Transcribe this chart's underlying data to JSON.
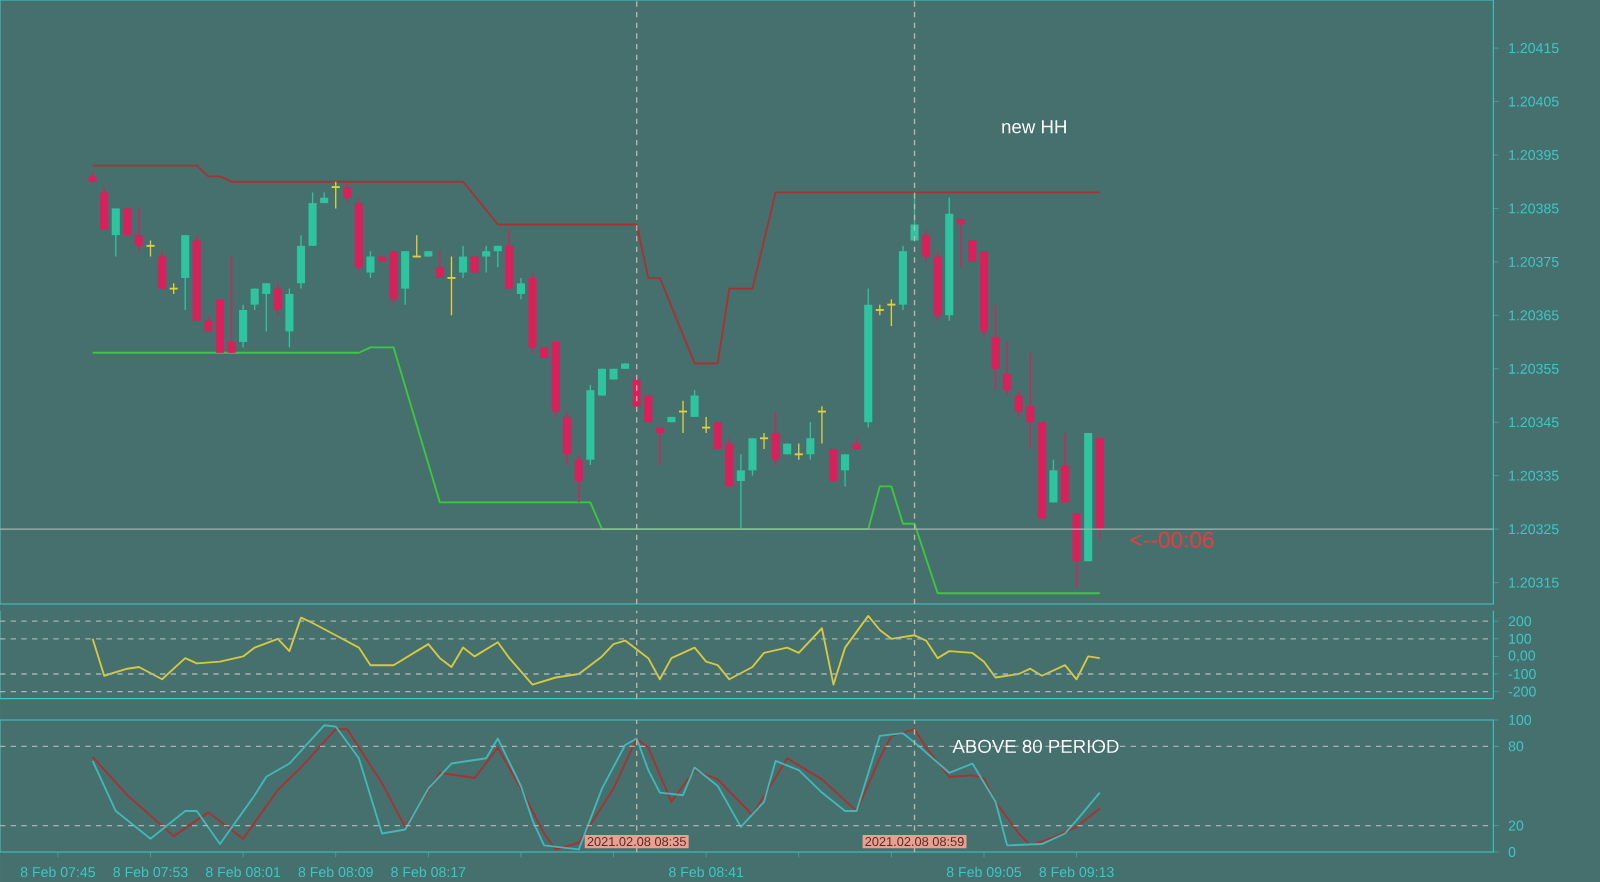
{
  "chart_data": [
    {
      "type": "candlestick",
      "x": [
        "2021-02-08T07:48",
        "2021-02-08T07:49",
        "2021-02-08T07:50",
        "2021-02-08T07:51",
        "2021-02-08T07:52",
        "2021-02-08T07:53",
        "2021-02-08T07:54",
        "2021-02-08T07:55",
        "2021-02-08T07:56",
        "2021-02-08T07:57",
        "2021-02-08T07:58",
        "2021-02-08T07:59",
        "2021-02-08T08:00",
        "2021-02-08T08:01",
        "2021-02-08T08:02",
        "2021-02-08T08:03",
        "2021-02-08T08:04",
        "2021-02-08T08:05",
        "2021-02-08T08:06",
        "2021-02-08T08:07",
        "2021-02-08T08:08",
        "2021-02-08T08:09",
        "2021-02-08T08:10",
        "2021-02-08T08:11",
        "2021-02-08T08:12",
        "2021-02-08T08:13",
        "2021-02-08T08:14",
        "2021-02-08T08:15",
        "2021-02-08T08:16",
        "2021-02-08T08:17",
        "2021-02-08T08:18",
        "2021-02-08T08:19",
        "2021-02-08T08:20",
        "2021-02-08T08:21",
        "2021-02-08T08:22",
        "2021-02-08T08:23",
        "2021-02-08T08:24",
        "2021-02-08T08:25",
        "2021-02-08T08:26",
        "2021-02-08T08:27",
        "2021-02-08T08:28",
        "2021-02-08T08:29",
        "2021-02-08T08:30",
        "2021-02-08T08:31",
        "2021-02-08T08:32",
        "2021-02-08T08:33",
        "2021-02-08T08:34",
        "2021-02-08T08:35",
        "2021-02-08T08:36",
        "2021-02-08T08:37",
        "2021-02-08T08:38",
        "2021-02-08T08:39",
        "2021-02-08T08:40",
        "2021-02-08T08:41",
        "2021-02-08T08:42",
        "2021-02-08T08:43",
        "2021-02-08T08:44",
        "2021-02-08T08:45",
        "2021-02-08T08:46",
        "2021-02-08T08:47",
        "2021-02-08T08:48",
        "2021-02-08T08:49",
        "2021-02-08T08:50",
        "2021-02-08T08:51",
        "2021-02-08T08:52",
        "2021-02-08T08:53",
        "2021-02-08T08:54",
        "2021-02-08T08:55",
        "2021-02-08T08:56",
        "2021-02-08T08:57",
        "2021-02-08T08:58",
        "2021-02-08T08:59",
        "2021-02-08T09:00",
        "2021-02-08T09:01",
        "2021-02-08T09:02",
        "2021-02-08T09:03",
        "2021-02-08T09:04",
        "2021-02-08T09:05",
        "2021-02-08T09:06",
        "2021-02-08T09:07",
        "2021-02-08T09:08",
        "2021-02-08T09:09",
        "2021-02-08T09:10",
        "2021-02-08T09:11",
        "2021-02-08T09:12",
        "2021-02-08T09:13",
        "2021-02-08T09:14",
        "2021-02-08T09:15"
      ],
      "ohlc": [
        [
          1.20391,
          1.20392,
          1.2039,
          1.2039
        ],
        [
          1.20388,
          1.20389,
          1.20381,
          1.20381
        ],
        [
          1.2038,
          1.20385,
          1.20376,
          1.20385
        ],
        [
          1.20385,
          1.20385,
          1.2038,
          1.2038
        ],
        [
          1.2038,
          1.20385,
          1.20377,
          1.20378
        ],
        [
          1.20378,
          1.20379,
          1.20376,
          1.20378
        ],
        [
          1.20376,
          1.20377,
          1.2037,
          1.2037
        ],
        [
          1.2037,
          1.20371,
          1.20369,
          1.2037
        ],
        [
          1.20372,
          1.2038,
          1.20366,
          1.2038
        ],
        [
          1.20379,
          1.2038,
          1.20364,
          1.20364
        ],
        [
          1.20364,
          1.20365,
          1.20362,
          1.20362
        ],
        [
          1.20368,
          1.20368,
          1.20358,
          1.20358
        ],
        [
          1.2036,
          1.20376,
          1.20358,
          1.20358
        ],
        [
          1.2036,
          1.20367,
          1.20359,
          1.20366
        ],
        [
          1.20367,
          1.2037,
          1.20366,
          1.2037
        ],
        [
          1.20369,
          1.20371,
          1.20362,
          1.20371
        ],
        [
          1.2037,
          1.20371,
          1.20365,
          1.20366
        ],
        [
          1.20362,
          1.2037,
          1.20359,
          1.20369
        ],
        [
          1.20371,
          1.2038,
          1.2037,
          1.20378
        ],
        [
          1.20378,
          1.20388,
          1.20378,
          1.20386
        ],
        [
          1.20386,
          1.20388,
          1.20386,
          1.20387
        ],
        [
          1.20389,
          1.2039,
          1.20385,
          1.20389
        ],
        [
          1.20389,
          1.2039,
          1.20386,
          1.20387
        ],
        [
          1.20386,
          1.20387,
          1.20373,
          1.20374
        ],
        [
          1.20373,
          1.20377,
          1.20372,
          1.20376
        ],
        [
          1.20376,
          1.20376,
          1.20375,
          1.20375
        ],
        [
          1.20377,
          1.20377,
          1.20367,
          1.20368
        ],
        [
          1.2037,
          1.20377,
          1.20367,
          1.20377
        ],
        [
          1.20376,
          1.2038,
          1.20376,
          1.20376
        ],
        [
          1.20376,
          1.20377,
          1.20376,
          1.20377
        ],
        [
          1.20374,
          1.20377,
          1.20372,
          1.20372
        ],
        [
          1.20372,
          1.20376,
          1.20365,
          1.20372
        ],
        [
          1.20373,
          1.20378,
          1.20372,
          1.20376
        ],
        [
          1.20376,
          1.20376,
          1.20373,
          1.20373
        ],
        [
          1.20376,
          1.20378,
          1.20373,
          1.20377
        ],
        [
          1.20377,
          1.20378,
          1.20374,
          1.20378
        ],
        [
          1.20378,
          1.20381,
          1.2037,
          1.2037
        ],
        [
          1.20369,
          1.20372,
          1.20368,
          1.20371
        ],
        [
          1.20372,
          1.20373,
          1.20358,
          1.20359
        ],
        [
          1.20359,
          1.20359,
          1.20357,
          1.20357
        ],
        [
          1.2036,
          1.2036,
          1.20346,
          1.20347
        ],
        [
          1.20346,
          1.20347,
          1.20337,
          1.20339
        ],
        [
          1.20338,
          1.20339,
          1.2033,
          1.20334
        ],
        [
          1.20338,
          1.20352,
          1.20337,
          1.20351
        ],
        [
          1.2035,
          1.20355,
          1.2035,
          1.20355
        ],
        [
          1.20353,
          1.20355,
          1.20353,
          1.20355
        ],
        [
          1.20355,
          1.20356,
          1.20355,
          1.20356
        ],
        [
          1.20353,
          1.20353,
          1.20347,
          1.20348
        ],
        [
          1.2035,
          1.2035,
          1.20345,
          1.20345
        ],
        [
          1.20344,
          1.20344,
          1.20337,
          1.20343
        ],
        [
          1.20345,
          1.20346,
          1.20345,
          1.20346
        ],
        [
          1.20347,
          1.20349,
          1.20343,
          1.20347
        ],
        [
          1.20346,
          1.20351,
          1.20346,
          1.2035
        ],
        [
          1.20344,
          1.20346,
          1.20343,
          1.20344
        ],
        [
          1.20345,
          1.20345,
          1.2034,
          1.2034
        ],
        [
          1.20341,
          1.20342,
          1.20333,
          1.20333
        ],
        [
          1.20334,
          1.20339,
          1.20325,
          1.20336
        ],
        [
          1.20336,
          1.20342,
          1.20335,
          1.20342
        ],
        [
          1.20342,
          1.20343,
          1.2034,
          1.20342
        ],
        [
          1.20343,
          1.20347,
          1.20337,
          1.20338
        ],
        [
          1.20339,
          1.20341,
          1.20339,
          1.20341
        ],
        [
          1.20339,
          1.20341,
          1.20338,
          1.20339
        ],
        [
          1.20339,
          1.20345,
          1.20338,
          1.20342
        ],
        [
          1.20347,
          1.20348,
          1.20341,
          1.20347
        ],
        [
          1.2034,
          1.2034,
          1.20334,
          1.20334
        ],
        [
          1.20336,
          1.20339,
          1.20333,
          1.20339
        ],
        [
          1.20341,
          1.20342,
          1.2034,
          1.2034
        ],
        [
          1.20345,
          1.2037,
          1.20344,
          1.20367
        ],
        [
          1.20366,
          1.20367,
          1.20365,
          1.20366
        ],
        [
          1.20367,
          1.20368,
          1.20363,
          1.20367
        ],
        [
          1.20367,
          1.20378,
          1.20366,
          1.20377
        ],
        [
          1.20379,
          1.20388,
          1.20379,
          1.20382
        ],
        [
          1.2038,
          1.20381,
          1.20375,
          1.20376
        ],
        [
          1.20376,
          1.20377,
          1.20364,
          1.20365
        ],
        [
          1.20365,
          1.20387,
          1.20364,
          1.20384
        ],
        [
          1.20383,
          1.20383,
          1.20374,
          1.20382
        ],
        [
          1.20379,
          1.20379,
          1.20375,
          1.20375
        ],
        [
          1.20377,
          1.20377,
          1.20361,
          1.20362
        ],
        [
          1.20361,
          1.20367,
          1.20351,
          1.20355
        ],
        [
          1.20354,
          1.2036,
          1.2035,
          1.20351
        ],
        [
          1.2035,
          1.20351,
          1.20346,
          1.20347
        ],
        [
          1.20348,
          1.20358,
          1.2034,
          1.20345
        ],
        [
          1.20345,
          1.20345,
          1.20327,
          1.20327
        ],
        [
          1.2033,
          1.20338,
          1.2033,
          1.20336
        ],
        [
          1.20337,
          1.20343,
          1.2033,
          1.2033
        ],
        [
          1.20328,
          1.20328,
          1.20314,
          1.20319
        ],
        [
          1.20319,
          1.20343,
          1.20319,
          1.20343
        ],
        [
          1.20342,
          1.20342,
          1.20323,
          1.20325
        ]
      ],
      "series": [
        {
          "type": "line",
          "color": "#a83232",
          "x": [
            "2021-02-08T07:48",
            "2021-02-08T07:57",
            "2021-02-08T07:58",
            "2021-02-08T07:59",
            "2021-02-08T08:00",
            "2021-02-08T08:20",
            "2021-02-08T08:23",
            "2021-02-08T08:35",
            "2021-02-08T08:36",
            "2021-02-08T08:37",
            "2021-02-08T08:40",
            "2021-02-08T08:42",
            "2021-02-08T08:43",
            "2021-02-08T08:45",
            "2021-02-08T08:47",
            "2021-02-08T09:15"
          ],
          "values": [
            1.20393,
            1.20393,
            1.20391,
            1.20391,
            1.2039,
            1.2039,
            1.20382,
            1.20382,
            1.20372,
            1.20372,
            1.20356,
            1.20356,
            1.2037,
            1.2037,
            1.20388,
            1.20388
          ]
        },
        {
          "type": "line",
          "color": "#3cc83c",
          "x": [
            "2021-02-08T07:48",
            "2021-02-08T08:11",
            "2021-02-08T08:12",
            "2021-02-08T08:14",
            "2021-02-08T08:18",
            "2021-02-08T08:31",
            "2021-02-08T08:32",
            "2021-02-08T08:55",
            "2021-02-08T08:56",
            "2021-02-08T08:57",
            "2021-02-08T08:58",
            "2021-02-08T08:59",
            "2021-02-08T09:01",
            "2021-02-08T09:15"
          ],
          "values": [
            1.20358,
            1.20358,
            1.20359,
            1.20359,
            1.2033,
            1.2033,
            1.20325,
            1.20325,
            1.20333,
            1.20333,
            1.20326,
            1.20326,
            1.20313,
            1.20313
          ]
        }
      ],
      "xlim": [
        "2021-02-08T07:40",
        "2021-02-08T09:49"
      ],
      "ylim": [
        1.20311,
        1.20424
      ],
      "yticks": [
        1.20315,
        1.20325,
        1.20335,
        1.20345,
        1.20355,
        1.20365,
        1.20375,
        1.20385,
        1.20395,
        1.20405,
        1.20415
      ],
      "tick_labels": "y",
      "ref_lines": [
        {
          "axis": "y",
          "value": 1.20325,
          "color": "#a4b4b4",
          "line_style": "solid"
        },
        {
          "axis": "x",
          "value": "2021-02-08T08:35",
          "color": "#c8b4a0",
          "line_style": "dashed"
        },
        {
          "axis": "x",
          "value": "2021-02-08T08:59",
          "color": "#c8b4a0",
          "line_style": "dashed"
        }
      ],
      "annotations": [
        "new HH",
        {
          "text": "<--00:06",
          "x": "2021-02-08T09:15",
          "y": 1.20325
        }
      ]
    },
    {
      "type": "line",
      "series": [
        {
          "color": "#d8c840",
          "x": [
            "2021-02-08T07:48",
            "2021-02-08T07:49",
            "2021-02-08T07:51",
            "2021-02-08T07:52",
            "2021-02-08T07:54",
            "2021-02-08T07:56",
            "2021-02-08T07:57",
            "2021-02-08T07:59",
            "2021-02-08T08:01",
            "2021-02-08T08:02",
            "2021-02-08T08:04",
            "2021-02-08T08:05",
            "2021-02-08T08:06",
            "2021-02-08T08:07",
            "2021-02-08T08:09",
            "2021-02-08T08:11",
            "2021-02-08T08:12",
            "2021-02-08T08:14",
            "2021-02-08T08:16",
            "2021-02-08T08:17",
            "2021-02-08T08:18",
            "2021-02-08T08:19",
            "2021-02-08T08:20",
            "2021-02-08T08:21",
            "2021-02-08T08:23",
            "2021-02-08T08:24",
            "2021-02-08T08:26",
            "2021-02-08T08:28",
            "2021-02-08T08:30",
            "2021-02-08T08:32",
            "2021-02-08T08:33",
            "2021-02-08T08:34",
            "2021-02-08T08:36",
            "2021-02-08T08:37",
            "2021-02-08T08:38",
            "2021-02-08T08:40",
            "2021-02-08T08:41",
            "2021-02-08T08:42",
            "2021-02-08T08:43",
            "2021-02-08T08:45",
            "2021-02-08T08:46",
            "2021-02-08T08:48",
            "2021-02-08T08:49",
            "2021-02-08T08:51",
            "2021-02-08T08:52",
            "2021-02-08T08:53",
            "2021-02-08T08:55",
            "2021-02-08T08:56",
            "2021-02-08T08:57",
            "2021-02-08T08:59",
            "2021-02-08T09:00",
            "2021-02-08T09:01",
            "2021-02-08T09:02",
            "2021-02-08T09:04",
            "2021-02-08T09:05",
            "2021-02-08T09:06",
            "2021-02-08T09:08",
            "2021-02-08T09:09",
            "2021-02-08T09:10",
            "2021-02-08T09:12",
            "2021-02-08T09:13",
            "2021-02-08T09:14",
            "2021-02-08T09:15"
          ],
          "values": [
            100,
            -110,
            -70,
            -60,
            -130,
            -10,
            -40,
            -30,
            0,
            50,
            100,
            30,
            220,
            190,
            120,
            50,
            -50,
            -50,
            30,
            70,
            -10,
            -60,
            50,
            0,
            80,
            -10,
            -160,
            -120,
            -100,
            0,
            70,
            90,
            -10,
            -130,
            -10,
            50,
            -30,
            -50,
            -130,
            -60,
            20,
            50,
            20,
            160,
            -160,
            50,
            230,
            150,
            100,
            120,
            90,
            -10,
            30,
            20,
            -30,
            -120,
            -100,
            -70,
            -110,
            -50,
            -130,
            0,
            -10
          ]
        }
      ],
      "xlim": [
        "2021-02-08T07:40",
        "2021-02-08T09:49"
      ],
      "ylim": [
        -240,
        260
      ],
      "yticks": [
        -200,
        -100,
        {
          "value": 0,
          "label": "0,00"
        },
        100,
        200
      ],
      "tick_labels": "y",
      "ref_lines": [
        {
          "axis": "y",
          "value": 200,
          "color": "#a4b4b4",
          "line_style": "dashed"
        },
        {
          "axis": "y",
          "value": 100,
          "color": "#a4b4b4",
          "line_style": "dashed"
        },
        {
          "axis": "y",
          "value": -100,
          "color": "#a4b4b4",
          "line_style": "dashed"
        },
        {
          "axis": "y",
          "value": -200,
          "color": "#a4b4b4",
          "line_style": "dashed"
        },
        {
          "axis": "x",
          "value": "2021-02-08T08:35",
          "color": "#c8b4a0",
          "line_style": "dashed"
        },
        {
          "axis": "x",
          "value": "2021-02-08T08:59",
          "color": "#c8b4a0",
          "line_style": "dashed"
        }
      ]
    },
    {
      "type": "line",
      "series": [
        {
          "color": "#a83232",
          "x": [
            "2021-02-08T07:48",
            "2021-02-08T07:51",
            "2021-02-08T07:55",
            "2021-02-08T07:58",
            "2021-02-08T08:01",
            "2021-02-08T08:04",
            "2021-02-08T08:06",
            "2021-02-08T08:09",
            "2021-02-08T08:10",
            "2021-02-08T08:13",
            "2021-02-08T08:15",
            "2021-02-08T08:18",
            "2021-02-08T08:21",
            "2021-02-08T08:23",
            "2021-02-08T08:25",
            "2021-02-08T08:27",
            "2021-02-08T08:28",
            "2021-02-08T08:30",
            "2021-02-08T08:33",
            "2021-02-08T08:35",
            "2021-02-08T08:36",
            "2021-02-08T08:38",
            "2021-02-08T08:40",
            "2021-02-08T08:42",
            "2021-02-08T08:45",
            "2021-02-08T08:48",
            "2021-02-08T08:51",
            "2021-02-08T08:54",
            "2021-02-08T08:56",
            "2021-02-08T08:57",
            "2021-02-08T08:59",
            "2021-02-08T09:00",
            "2021-02-08T09:02",
            "2021-02-08T09:04",
            "2021-02-08T09:05",
            "2021-02-08T09:06",
            "2021-02-08T09:08",
            "2021-02-08T09:09",
            "2021-02-08T09:11",
            "2021-02-08T09:13",
            "2021-02-08T09:15"
          ],
          "values": [
            72,
            43,
            12,
            30,
            10,
            47,
            64,
            93,
            93,
            52,
            19,
            60,
            56,
            79,
            48,
            14,
            2,
            7,
            48,
            86,
            79,
            38,
            62,
            55,
            28,
            71,
            55,
            31,
            71,
            88,
            93,
            79,
            57,
            58,
            56,
            38,
            14,
            5,
            11,
            19,
            33
          ]
        },
        {
          "color": "#40b8b8",
          "x": [
            "2021-02-08T07:48",
            "2021-02-08T07:50",
            "2021-02-08T07:53",
            "2021-02-08T07:56",
            "2021-02-08T07:57",
            "2021-02-08T07:59",
            "2021-02-08T08:02",
            "2021-02-08T08:03",
            "2021-02-08T08:05",
            "2021-02-08T08:08",
            "2021-02-08T08:09",
            "2021-02-08T08:11",
            "2021-02-08T08:13",
            "2021-02-08T08:15",
            "2021-02-08T08:17",
            "2021-02-08T08:19",
            "2021-02-08T08:22",
            "2021-02-08T08:23",
            "2021-02-08T08:25",
            "2021-02-08T08:26",
            "2021-02-08T08:27",
            "2021-02-08T08:30",
            "2021-02-08T08:32",
            "2021-02-08T08:34",
            "2021-02-08T08:35",
            "2021-02-08T08:36",
            "2021-02-08T08:37",
            "2021-02-08T08:39",
            "2021-02-08T08:40",
            "2021-02-08T08:42",
            "2021-02-08T08:44",
            "2021-02-08T08:46",
            "2021-02-08T08:47",
            "2021-02-08T08:49",
            "2021-02-08T08:51",
            "2021-02-08T08:53",
            "2021-02-08T08:54",
            "2021-02-08T08:56",
            "2021-02-08T08:58",
            "2021-02-08T08:59",
            "2021-02-08T09:02",
            "2021-02-08T09:04",
            "2021-02-08T09:06",
            "2021-02-08T09:07",
            "2021-02-08T09:10",
            "2021-02-08T09:12",
            "2021-02-08T09:13",
            "2021-02-08T09:15"
          ],
          "values": [
            69,
            31,
            10,
            31,
            31,
            6,
            43,
            57,
            67,
            96,
            95,
            71,
            14,
            17,
            48,
            67,
            71,
            86,
            50,
            24,
            5,
            2,
            48,
            81,
            86,
            62,
            45,
            43,
            64,
            50,
            19,
            38,
            69,
            62,
            45,
            31,
            31,
            88,
            90,
            83,
            60,
            67,
            38,
            5,
            6,
            14,
            24,
            45
          ]
        }
      ],
      "xlim": [
        "2021-02-08T07:40",
        "2021-02-08T09:49"
      ],
      "ylim": [
        0,
        100
      ],
      "xticks": [
        {
          "value": "2021-02-08T07:45",
          "label": "8 Feb 07:45"
        },
        {
          "value": "2021-02-08T07:53",
          "label": "8 Feb 07:53"
        },
        {
          "value": "2021-02-08T08:01",
          "label": "8 Feb 08:01"
        },
        {
          "value": "2021-02-08T08:09",
          "label": "8 Feb 08:09"
        },
        {
          "value": "2021-02-08T08:17",
          "label": "8 Feb 08:17"
        },
        {
          "value": "2021-02-08T08:25",
          "label": null
        },
        {
          "value": "2021-02-08T08:33",
          "label": null
        },
        {
          "value": "2021-02-08T08:41",
          "label": "8 Feb 08:41"
        },
        {
          "value": "2021-02-08T08:49",
          "label": null
        },
        {
          "value": "2021-02-08T08:57",
          "label": null
        },
        {
          "value": "2021-02-08T09:05",
          "label": "8 Feb 09:05"
        },
        {
          "value": "2021-02-08T09:13",
          "label": "8 Feb 09:13"
        }
      ],
      "yticks": [
        0,
        20,
        80,
        100
      ],
      "ref_lines": [
        {
          "axis": "y",
          "value": 80,
          "color": "#a4b4b4",
          "line_style": "dashed"
        },
        {
          "axis": "y",
          "value": 20,
          "color": "#a4b4b4",
          "line_style": "dashed"
        },
        {
          "axis": "x",
          "value": "2021-02-08T08:35",
          "color": "#c8b4a0",
          "line_style": "dashed",
          "label": "2021.02.08 08:35"
        },
        {
          "axis": "x",
          "value": "2021-02-08T08:59",
          "color": "#c8b4a0",
          "line_style": "dashed",
          "label": "2021.02.08 08:59"
        }
      ],
      "annotations": [
        {
          "text": "ABOVE 80 PERIOD",
          "x": "2021-02-08T08:59",
          "y": 80
        }
      ]
    }
  ]
}
